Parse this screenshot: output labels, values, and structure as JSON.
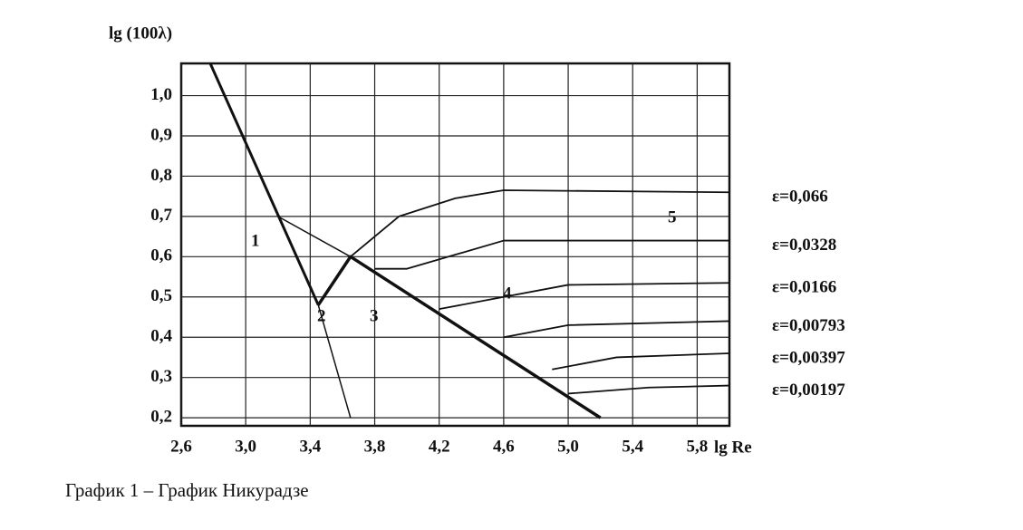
{
  "chart_data": {
    "type": "line",
    "y_label": "lg (100λ)",
    "x_label": "lg Re",
    "caption": "График 1 – График Никурадзе",
    "xlim": [
      2.6,
      6.0
    ],
    "ylim": [
      0.18,
      1.08
    ],
    "xticks": [
      {
        "value": 2.6,
        "label": "2,6"
      },
      {
        "value": 3.0,
        "label": "3,0"
      },
      {
        "value": 3.4,
        "label": "3,4"
      },
      {
        "value": 3.8,
        "label": "3,8"
      },
      {
        "value": 4.2,
        "label": "4,2"
      },
      {
        "value": 4.6,
        "label": "4,6"
      },
      {
        "value": 5.0,
        "label": "5,0"
      },
      {
        "value": 5.4,
        "label": "5,4"
      },
      {
        "value": 5.8,
        "label": "5,8"
      }
    ],
    "yticks": [
      {
        "value": 0.2,
        "label": "0,2"
      },
      {
        "value": 0.3,
        "label": "0,3"
      },
      {
        "value": 0.4,
        "label": "0,4"
      },
      {
        "value": 0.5,
        "label": "0,5"
      },
      {
        "value": 0.6,
        "label": "0,6"
      },
      {
        "value": 0.7,
        "label": "0,7"
      },
      {
        "value": 0.8,
        "label": "0,8"
      },
      {
        "value": 0.9,
        "label": "0,9"
      },
      {
        "value": 1.0,
        "label": "1,0"
      }
    ],
    "grid": true,
    "color": "#111111",
    "series": [
      {
        "x": [
          2.78,
          3.45
        ],
        "values": [
          1.08,
          0.48
        ],
        "width": 3
      },
      {
        "x": [
          3.45,
          3.65
        ],
        "values": [
          0.48,
          0.2
        ],
        "width": 1.5
      },
      {
        "x": [
          3.45,
          3.65,
          5.2
        ],
        "values": [
          0.48,
          0.6,
          0.2
        ],
        "width": 3.5
      },
      {
        "x": [
          3.2,
          3.65
        ],
        "values": [
          0.7,
          0.6
        ],
        "width": 1.5
      },
      {
        "name": "ε=0,066",
        "x": [
          3.65,
          3.95,
          4.3,
          4.6,
          6.0
        ],
        "values": [
          0.6,
          0.7,
          0.745,
          0.765,
          0.76
        ],
        "width": 1.8
      },
      {
        "name": "ε=0,0328",
        "x": [
          3.8,
          4.0,
          4.6,
          6.0
        ],
        "values": [
          0.57,
          0.57,
          0.64,
          0.64
        ],
        "width": 1.8
      },
      {
        "name": "ε=0,0166",
        "x": [
          4.2,
          4.6,
          5.0,
          6.0
        ],
        "values": [
          0.47,
          0.5,
          0.53,
          0.535
        ],
        "width": 1.8
      },
      {
        "name": "ε=0,00793",
        "x": [
          4.6,
          5.0,
          6.0
        ],
        "values": [
          0.4,
          0.43,
          0.44
        ],
        "width": 1.8
      },
      {
        "name": "ε=0,00397",
        "x": [
          4.9,
          5.3,
          6.0
        ],
        "values": [
          0.32,
          0.35,
          0.36
        ],
        "width": 1.8
      },
      {
        "name": "ε=0,00197",
        "x": [
          5.0,
          5.5,
          6.0
        ],
        "values": [
          0.26,
          0.275,
          0.28
        ],
        "width": 1.8
      }
    ],
    "annotations": [
      "1",
      "2",
      "3",
      "4",
      "5"
    ]
  }
}
